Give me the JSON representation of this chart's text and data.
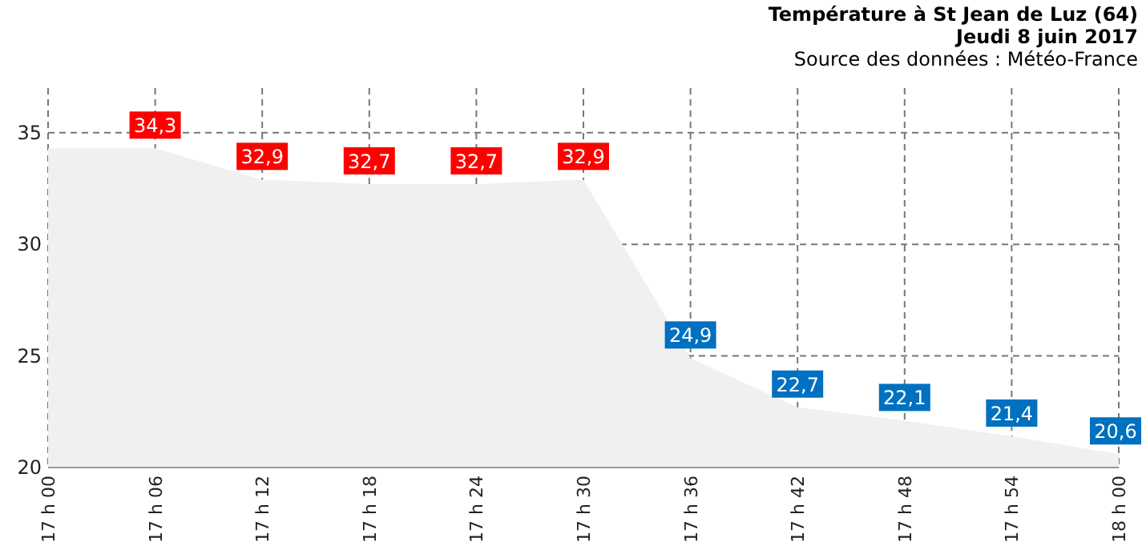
{
  "chart_data": {
    "type": "area",
    "title": "Température à St Jean de Luz (64)",
    "subtitle": "Jeudi 8 juin 2017",
    "annotations": [
      "Source des données : Météo-France"
    ],
    "categories": [
      "17 h 00",
      "17 h 06",
      "17 h 12",
      "17 h 18",
      "17 h 24",
      "17 h 30",
      "17 h 36",
      "17 h 42",
      "17 h 48",
      "17 h 54",
      "18 h 00"
    ],
    "series": [
      {
        "color": "#f0f0f0",
        "values": [
          34.3,
          34.3,
          32.9,
          32.7,
          32.7,
          32.9,
          24.9,
          22.7,
          22.1,
          21.4,
          20.6
        ],
        "value_labels": [
          null,
          "34,3",
          "32,9",
          "32,7",
          "32,7",
          "32,9",
          "24,9",
          "22,7",
          "22,1",
          "21,4",
          "20,6"
        ],
        "colors": [
          null,
          "#ff0000",
          "#ff0000",
          "#ff0000",
          "#ff0000",
          "#ff0000",
          "#0070c0",
          "#0070c0",
          "#0070c0",
          "#0070c0",
          "#0070c0"
        ]
      }
    ],
    "ylim": [
      20,
      37
    ],
    "yticks": [
      20,
      25,
      30,
      35
    ],
    "grid": true
  }
}
